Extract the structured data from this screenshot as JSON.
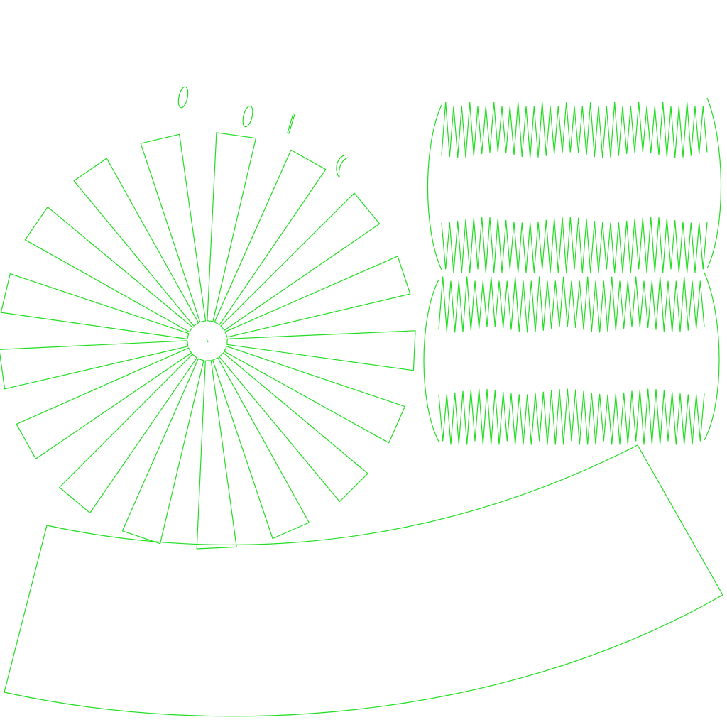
{
  "canvas": {
    "background": "#ffffff",
    "stroke": "#22dd22"
  },
  "parts": {
    "radial_blades": {
      "count": 17
    },
    "small_marks": {
      "count": 4
    },
    "tooth_strips": {
      "count": 2,
      "teeth_per_row": 33
    },
    "arc_band": {
      "count": 1
    }
  }
}
